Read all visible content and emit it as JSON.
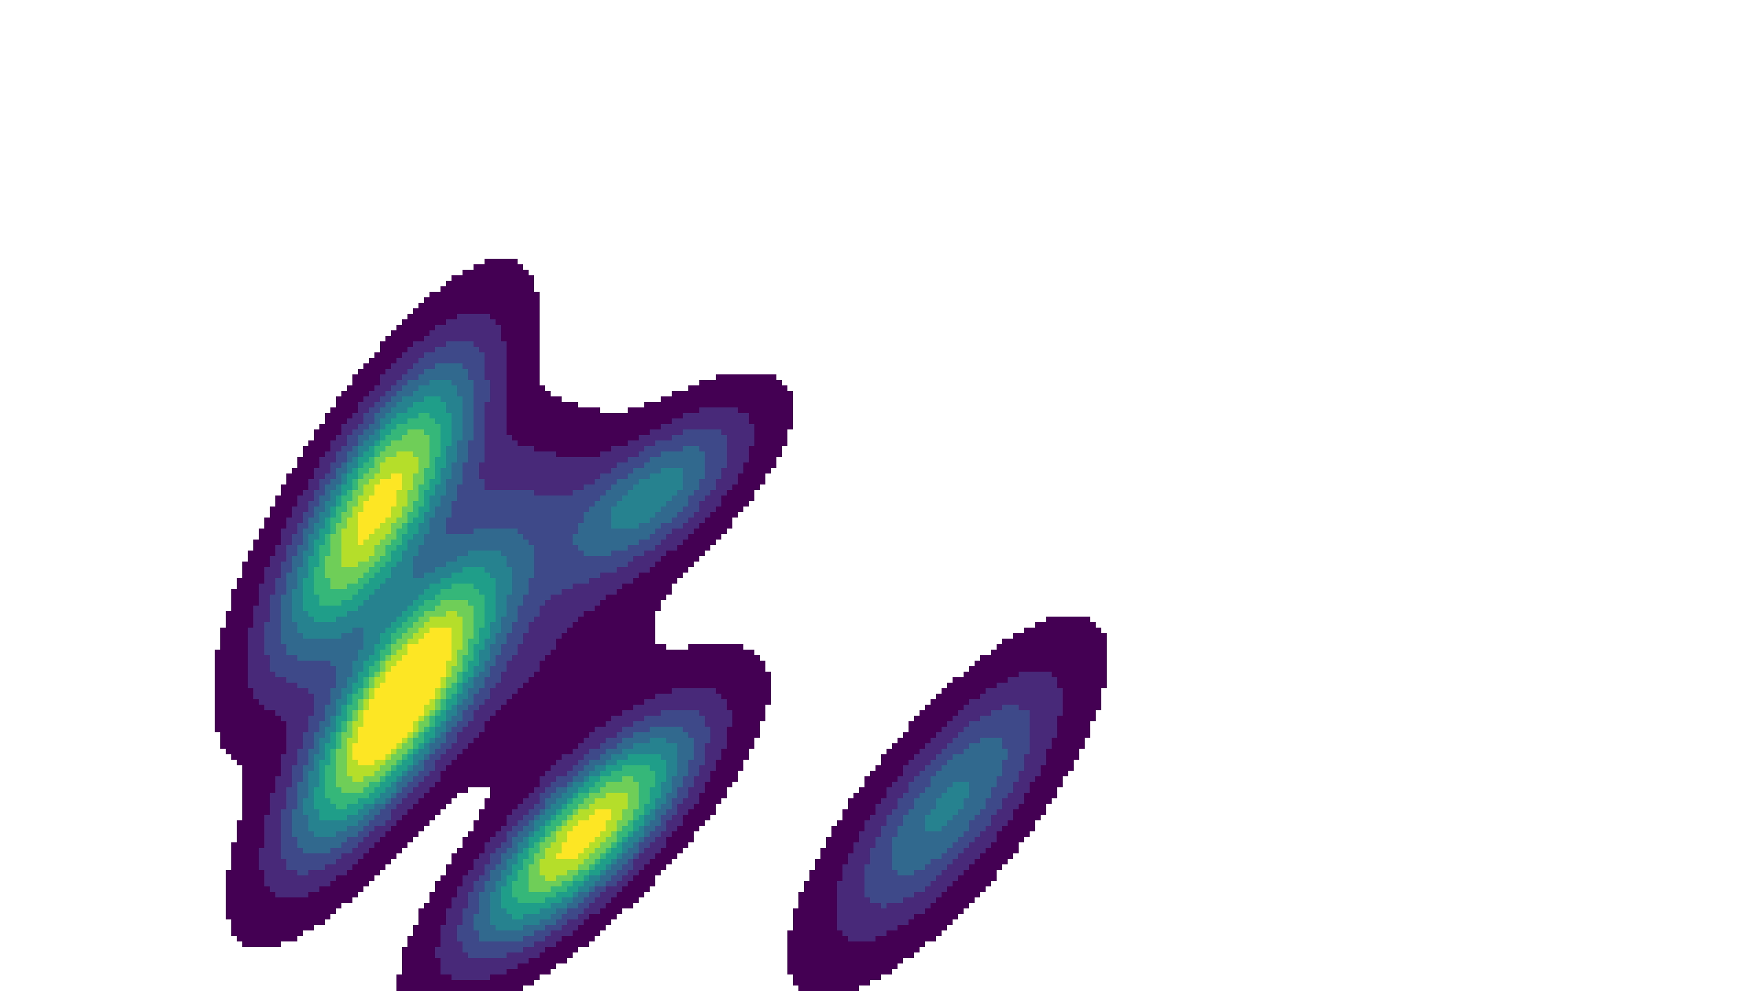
{
  "chart_data": {
    "type": "heatmap",
    "plot_kind": "kde-filled-contour",
    "title": "",
    "xlabel": "",
    "ylabel": "",
    "axes_visible": false,
    "grid": false,
    "legend": "none",
    "xlim": [
      0,
      10
    ],
    "ylim": [
      0,
      5.625
    ],
    "colormap": "viridis",
    "levels": [
      0.04,
      0.13,
      0.22,
      0.31,
      0.4,
      0.49,
      0.58,
      0.67,
      0.76,
      0.85
    ],
    "level_colors": [
      "#440154",
      "#482878",
      "#3e4989",
      "#31688e",
      "#26828e",
      "#1f9e89",
      "#35b779",
      "#6ece58",
      "#b5de2b",
      "#fde725"
    ],
    "components": [
      {
        "x": 2.14,
        "y": 2.75,
        "weight": 0.85,
        "sx": 0.37,
        "sy": 0.57,
        "rho": 0.78
      },
      {
        "x": 2.25,
        "y": 1.61,
        "weight": 1.0,
        "sx": 0.38,
        "sy": 0.54,
        "rho": 0.8
      },
      {
        "x": 3.31,
        "y": 0.88,
        "weight": 0.9,
        "sx": 0.42,
        "sy": 0.42,
        "rho": 0.8
      },
      {
        "x": 3.72,
        "y": 2.82,
        "weight": 0.42,
        "sx": 0.36,
        "sy": 0.32,
        "rho": 0.7
      },
      {
        "x": 5.38,
        "y": 1.05,
        "weight": 0.42,
        "sx": 0.42,
        "sy": 0.5,
        "rho": 0.78
      },
      {
        "x": 2.7,
        "y": 2.05,
        "weight": 0.15,
        "sx": 0.6,
        "sy": 0.5,
        "rho": 0.0
      },
      {
        "x": 3.0,
        "y": 2.9,
        "weight": 0.1,
        "sx": 0.45,
        "sy": 0.3,
        "rho": 0.0
      }
    ]
  }
}
